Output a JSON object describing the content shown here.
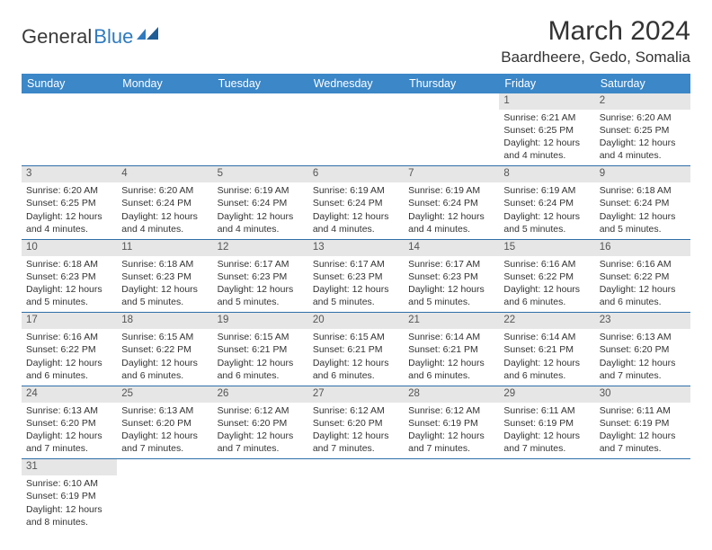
{
  "brand": {
    "text1": "General",
    "text2": "Blue"
  },
  "title": "March 2024",
  "location": "Baardheere, Gedo, Somalia",
  "colors": {
    "header_bg": "#3b87c8",
    "header_text": "#ffffff",
    "daynum_bg": "#e6e6e6",
    "row_border": "#2f6fa8",
    "brand_blue": "#2f7bbf"
  },
  "weekdays": [
    "Sunday",
    "Monday",
    "Tuesday",
    "Wednesday",
    "Thursday",
    "Friday",
    "Saturday"
  ],
  "weeks": [
    [
      {
        "n": "",
        "lines": []
      },
      {
        "n": "",
        "lines": []
      },
      {
        "n": "",
        "lines": []
      },
      {
        "n": "",
        "lines": []
      },
      {
        "n": "",
        "lines": []
      },
      {
        "n": "1",
        "lines": [
          "Sunrise: 6:21 AM",
          "Sunset: 6:25 PM",
          "Daylight: 12 hours",
          "and 4 minutes."
        ]
      },
      {
        "n": "2",
        "lines": [
          "Sunrise: 6:20 AM",
          "Sunset: 6:25 PM",
          "Daylight: 12 hours",
          "and 4 minutes."
        ]
      }
    ],
    [
      {
        "n": "3",
        "lines": [
          "Sunrise: 6:20 AM",
          "Sunset: 6:25 PM",
          "Daylight: 12 hours",
          "and 4 minutes."
        ]
      },
      {
        "n": "4",
        "lines": [
          "Sunrise: 6:20 AM",
          "Sunset: 6:24 PM",
          "Daylight: 12 hours",
          "and 4 minutes."
        ]
      },
      {
        "n": "5",
        "lines": [
          "Sunrise: 6:19 AM",
          "Sunset: 6:24 PM",
          "Daylight: 12 hours",
          "and 4 minutes."
        ]
      },
      {
        "n": "6",
        "lines": [
          "Sunrise: 6:19 AM",
          "Sunset: 6:24 PM",
          "Daylight: 12 hours",
          "and 4 minutes."
        ]
      },
      {
        "n": "7",
        "lines": [
          "Sunrise: 6:19 AM",
          "Sunset: 6:24 PM",
          "Daylight: 12 hours",
          "and 4 minutes."
        ]
      },
      {
        "n": "8",
        "lines": [
          "Sunrise: 6:19 AM",
          "Sunset: 6:24 PM",
          "Daylight: 12 hours",
          "and 5 minutes."
        ]
      },
      {
        "n": "9",
        "lines": [
          "Sunrise: 6:18 AM",
          "Sunset: 6:24 PM",
          "Daylight: 12 hours",
          "and 5 minutes."
        ]
      }
    ],
    [
      {
        "n": "10",
        "lines": [
          "Sunrise: 6:18 AM",
          "Sunset: 6:23 PM",
          "Daylight: 12 hours",
          "and 5 minutes."
        ]
      },
      {
        "n": "11",
        "lines": [
          "Sunrise: 6:18 AM",
          "Sunset: 6:23 PM",
          "Daylight: 12 hours",
          "and 5 minutes."
        ]
      },
      {
        "n": "12",
        "lines": [
          "Sunrise: 6:17 AM",
          "Sunset: 6:23 PM",
          "Daylight: 12 hours",
          "and 5 minutes."
        ]
      },
      {
        "n": "13",
        "lines": [
          "Sunrise: 6:17 AM",
          "Sunset: 6:23 PM",
          "Daylight: 12 hours",
          "and 5 minutes."
        ]
      },
      {
        "n": "14",
        "lines": [
          "Sunrise: 6:17 AM",
          "Sunset: 6:23 PM",
          "Daylight: 12 hours",
          "and 5 minutes."
        ]
      },
      {
        "n": "15",
        "lines": [
          "Sunrise: 6:16 AM",
          "Sunset: 6:22 PM",
          "Daylight: 12 hours",
          "and 6 minutes."
        ]
      },
      {
        "n": "16",
        "lines": [
          "Sunrise: 6:16 AM",
          "Sunset: 6:22 PM",
          "Daylight: 12 hours",
          "and 6 minutes."
        ]
      }
    ],
    [
      {
        "n": "17",
        "lines": [
          "Sunrise: 6:16 AM",
          "Sunset: 6:22 PM",
          "Daylight: 12 hours",
          "and 6 minutes."
        ]
      },
      {
        "n": "18",
        "lines": [
          "Sunrise: 6:15 AM",
          "Sunset: 6:22 PM",
          "Daylight: 12 hours",
          "and 6 minutes."
        ]
      },
      {
        "n": "19",
        "lines": [
          "Sunrise: 6:15 AM",
          "Sunset: 6:21 PM",
          "Daylight: 12 hours",
          "and 6 minutes."
        ]
      },
      {
        "n": "20",
        "lines": [
          "Sunrise: 6:15 AM",
          "Sunset: 6:21 PM",
          "Daylight: 12 hours",
          "and 6 minutes."
        ]
      },
      {
        "n": "21",
        "lines": [
          "Sunrise: 6:14 AM",
          "Sunset: 6:21 PM",
          "Daylight: 12 hours",
          "and 6 minutes."
        ]
      },
      {
        "n": "22",
        "lines": [
          "Sunrise: 6:14 AM",
          "Sunset: 6:21 PM",
          "Daylight: 12 hours",
          "and 6 minutes."
        ]
      },
      {
        "n": "23",
        "lines": [
          "Sunrise: 6:13 AM",
          "Sunset: 6:20 PM",
          "Daylight: 12 hours",
          "and 7 minutes."
        ]
      }
    ],
    [
      {
        "n": "24",
        "lines": [
          "Sunrise: 6:13 AM",
          "Sunset: 6:20 PM",
          "Daylight: 12 hours",
          "and 7 minutes."
        ]
      },
      {
        "n": "25",
        "lines": [
          "Sunrise: 6:13 AM",
          "Sunset: 6:20 PM",
          "Daylight: 12 hours",
          "and 7 minutes."
        ]
      },
      {
        "n": "26",
        "lines": [
          "Sunrise: 6:12 AM",
          "Sunset: 6:20 PM",
          "Daylight: 12 hours",
          "and 7 minutes."
        ]
      },
      {
        "n": "27",
        "lines": [
          "Sunrise: 6:12 AM",
          "Sunset: 6:20 PM",
          "Daylight: 12 hours",
          "and 7 minutes."
        ]
      },
      {
        "n": "28",
        "lines": [
          "Sunrise: 6:12 AM",
          "Sunset: 6:19 PM",
          "Daylight: 12 hours",
          "and 7 minutes."
        ]
      },
      {
        "n": "29",
        "lines": [
          "Sunrise: 6:11 AM",
          "Sunset: 6:19 PM",
          "Daylight: 12 hours",
          "and 7 minutes."
        ]
      },
      {
        "n": "30",
        "lines": [
          "Sunrise: 6:11 AM",
          "Sunset: 6:19 PM",
          "Daylight: 12 hours",
          "and 7 minutes."
        ]
      }
    ],
    [
      {
        "n": "31",
        "lines": [
          "Sunrise: 6:10 AM",
          "Sunset: 6:19 PM",
          "Daylight: 12 hours",
          "and 8 minutes."
        ]
      },
      {
        "n": "",
        "lines": []
      },
      {
        "n": "",
        "lines": []
      },
      {
        "n": "",
        "lines": []
      },
      {
        "n": "",
        "lines": []
      },
      {
        "n": "",
        "lines": []
      },
      {
        "n": "",
        "lines": []
      }
    ]
  ]
}
